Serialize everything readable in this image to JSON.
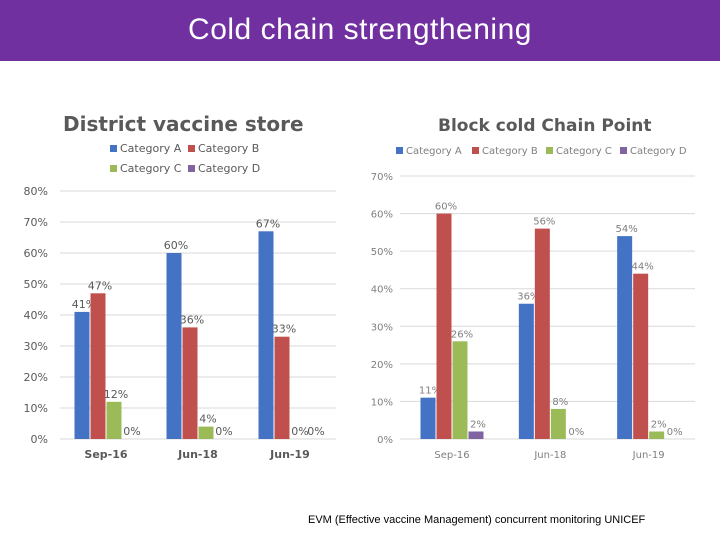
{
  "header": {
    "title": "Cold chain strengthening"
  },
  "footer": {
    "source": "EVM (Effective vaccine Management) concurrent monitoring UNICEF"
  },
  "colors": {
    "banner": "#7030a0",
    "series": [
      "#4472c4",
      "#c0504d",
      "#9bbb59",
      "#8064a2"
    ]
  },
  "chart_data": [
    {
      "type": "bar",
      "title": "District vaccine store",
      "categories": [
        "Sep-16",
        "Jun-18",
        "Jun-19"
      ],
      "series": [
        {
          "name": "Category A",
          "values": [
            41,
            60,
            67
          ],
          "labels": [
            "41%",
            "60%",
            "67%"
          ]
        },
        {
          "name": "Category B",
          "values": [
            47,
            36,
            33
          ],
          "labels": [
            "47%",
            "36%",
            "33%"
          ]
        },
        {
          "name": "Category C",
          "values": [
            12,
            4,
            0
          ],
          "labels": [
            "12%",
            "4%",
            "0%"
          ]
        },
        {
          "name": "Category D",
          "values": [
            0,
            0,
            0
          ],
          "labels": [
            "0%",
            "0%",
            "0%"
          ]
        }
      ],
      "yticks": [
        "0%",
        "10%",
        "20%",
        "30%",
        "40%",
        "50%",
        "60%",
        "70%",
        "80%"
      ],
      "ylim": [
        0,
        80
      ],
      "grid": true,
      "legend": "top"
    },
    {
      "type": "bar",
      "title": "Block cold Chain Point",
      "categories": [
        "Sep-16",
        "Jun-18",
        "Jun-19"
      ],
      "series": [
        {
          "name": "Category A",
          "values": [
            11,
            36,
            54
          ],
          "labels": [
            "11%",
            "36%",
            "54%"
          ]
        },
        {
          "name": "Category B",
          "values": [
            60,
            56,
            44
          ],
          "labels": [
            "60%",
            "56%",
            "44%"
          ]
        },
        {
          "name": "Category C",
          "values": [
            26,
            8,
            2
          ],
          "labels": [
            "26%",
            "8%",
            "2%"
          ]
        },
        {
          "name": "Category D",
          "values": [
            2,
            0,
            0
          ],
          "labels": [
            "2%",
            "0%",
            "0%"
          ]
        }
      ],
      "yticks": [
        "0%",
        "10%",
        "20%",
        "30%",
        "40%",
        "50%",
        "60%",
        "70%"
      ],
      "ylim": [
        0,
        70
      ],
      "grid": true,
      "legend": "top"
    }
  ]
}
